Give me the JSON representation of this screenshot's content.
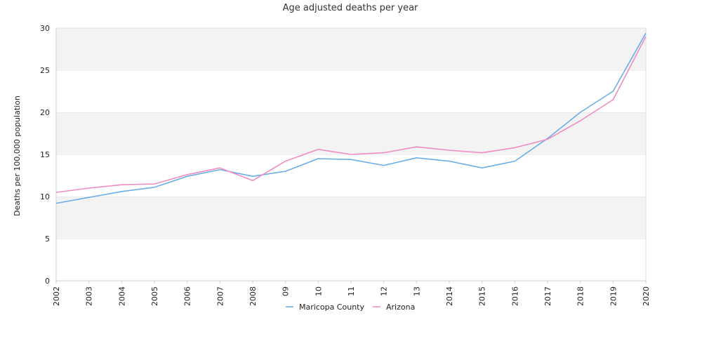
{
  "chart_data": {
    "type": "line",
    "title": "Age adjusted deaths per year",
    "xlabel": "",
    "ylabel": "Deaths per 100,000 population",
    "categories": [
      "2002",
      "2003",
      "2004",
      "2005",
      "2006",
      "2007",
      "2008",
      "09",
      "10",
      "11",
      "12",
      "13",
      "2014",
      "2015",
      "2016",
      "2017",
      "2018",
      "2019",
      "2020"
    ],
    "ylim": [
      0,
      30
    ],
    "yticks": [
      0,
      5,
      10,
      15,
      20,
      25,
      30
    ],
    "grid": "alternating horizontal bands",
    "legend_position": "bottom-center",
    "series": [
      {
        "name": "Maricopa County",
        "color": "#6aaee8",
        "values": [
          9.2,
          9.9,
          10.6,
          11.1,
          12.4,
          13.2,
          12.4,
          13.0,
          14.5,
          14.4,
          13.7,
          14.6,
          14.2,
          13.4,
          14.2,
          16.9,
          20.0,
          22.5,
          29.4
        ]
      },
      {
        "name": "Arizona",
        "color": "#f08cc4",
        "values": [
          10.5,
          11.0,
          11.4,
          11.5,
          12.6,
          13.4,
          11.9,
          14.2,
          15.6,
          15.0,
          15.2,
          15.9,
          15.5,
          15.2,
          15.8,
          16.8,
          19.0,
          21.5,
          29.0
        ]
      }
    ]
  }
}
